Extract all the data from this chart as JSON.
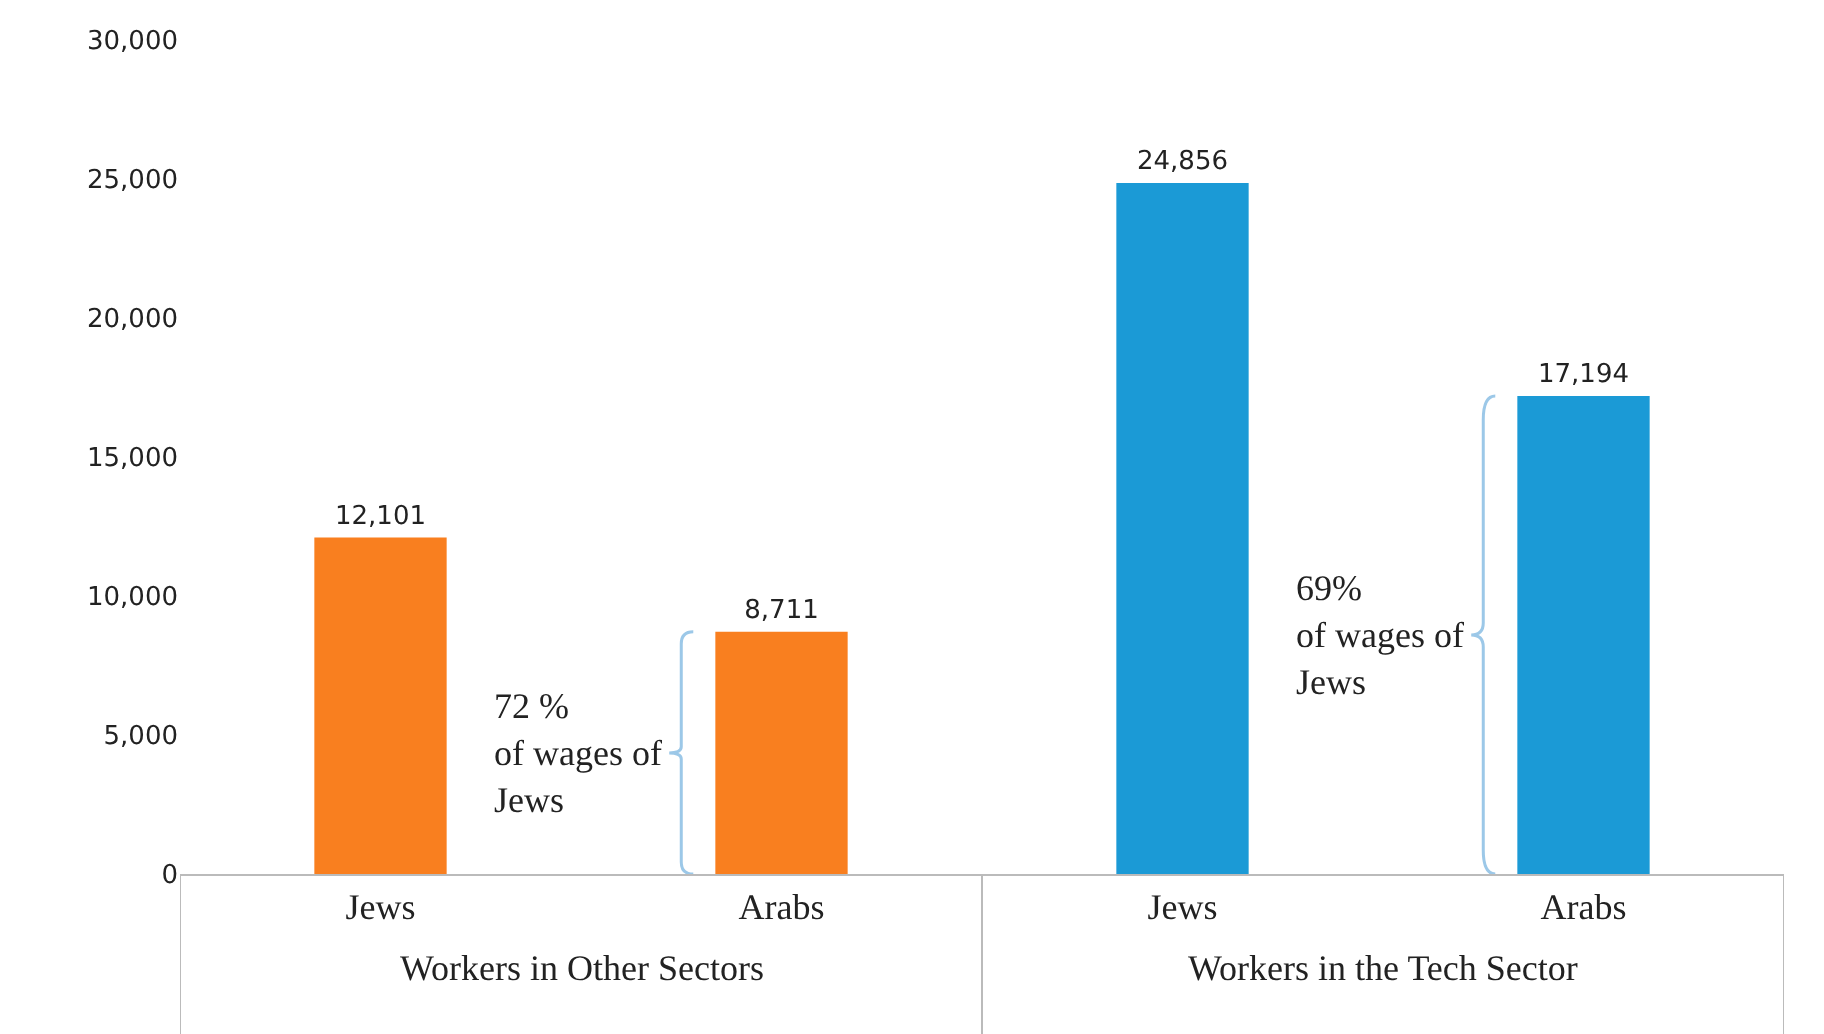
{
  "chart_data": {
    "type": "bar",
    "categories": [
      "Jews",
      "Arabs",
      "Jews",
      "Arabs"
    ],
    "values": [
      12101,
      8711,
      24856,
      17194
    ],
    "colors": [
      "#f97f1f",
      "#f97f1f",
      "#1b9ad6",
      "#1b9ad6"
    ],
    "value_labels": [
      "12,101",
      "8,711",
      "24,856",
      "17,194"
    ],
    "ylim": [
      0,
      30000
    ],
    "yticks": [
      0,
      {
        "value": 5000,
        "label": "5,000"
      },
      {
        "value": 10000,
        "label": "10,000"
      },
      {
        "value": 15000,
        "label": "15,000"
      },
      {
        "value": 20000,
        "label": "20,000"
      },
      {
        "value": 25000,
        "label": "25,000"
      },
      {
        "value": 30000,
        "label": "30,000"
      }
    ],
    "legend": false,
    "annotations": [
      "Workers in Other Sectors",
      "Workers in the Tech Sector",
      "72 %\nof wages of\nJews",
      "69%\nof wages of\nJews"
    ]
  }
}
